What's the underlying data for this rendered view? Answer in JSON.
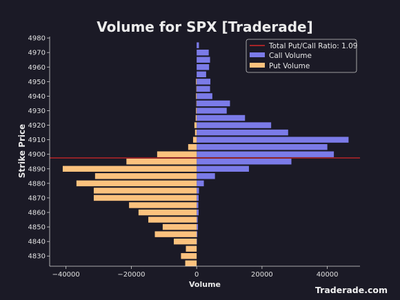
{
  "chart_data": {
    "type": "bar",
    "orientation": "horizontal",
    "title": "Volume for SPX [Traderade]",
    "xlabel": "Volume",
    "ylabel": "Strike Price",
    "xlim": [
      -45000,
      50000
    ],
    "ylim": [
      4823,
      4981
    ],
    "xticks": [
      -40000,
      -20000,
      0,
      20000,
      40000
    ],
    "yticks": [
      4830,
      4840,
      4850,
      4860,
      4870,
      4880,
      4890,
      4900,
      4910,
      4920,
      4930,
      4940,
      4950,
      4960,
      4970,
      4980
    ],
    "strikes": [
      4825,
      4830,
      4835,
      4840,
      4845,
      4850,
      4855,
      4860,
      4865,
      4870,
      4875,
      4880,
      4885,
      4890,
      4895,
      4900,
      4905,
      4910,
      4915,
      4920,
      4925,
      4930,
      4935,
      4940,
      4945,
      4950,
      4955,
      4960,
      4965,
      4970,
      4975
    ],
    "series": [
      {
        "name": "Call Volume",
        "color": "#7b7be8",
        "values": [
          0,
          0,
          0,
          100,
          200,
          400,
          300,
          600,
          500,
          600,
          700,
          2200,
          5600,
          16000,
          29000,
          42000,
          40000,
          46500,
          28000,
          22800,
          14800,
          9200,
          10200,
          4800,
          4100,
          4200,
          2900,
          3800,
          4100,
          3700,
          700
        ]
      },
      {
        "name": "Put Volume",
        "color": "#fcc27e",
        "values": [
          -3500,
          -4800,
          -3300,
          -7000,
          -12800,
          -10400,
          -14800,
          -17800,
          -20700,
          -31500,
          -31500,
          -36800,
          -31100,
          -41000,
          -21500,
          -12100,
          -2600,
          -1100,
          -500,
          -700,
          -300,
          -200,
          -100,
          -200,
          -100,
          -200,
          0,
          0,
          0,
          0,
          0
        ]
      }
    ],
    "reference_line": {
      "label": "Total Put/Call Ratio: 1.09",
      "y": 4897.5,
      "color": "#d62728"
    },
    "legend_position": "top-right",
    "grid": false
  },
  "watermark": "Traderade.com"
}
